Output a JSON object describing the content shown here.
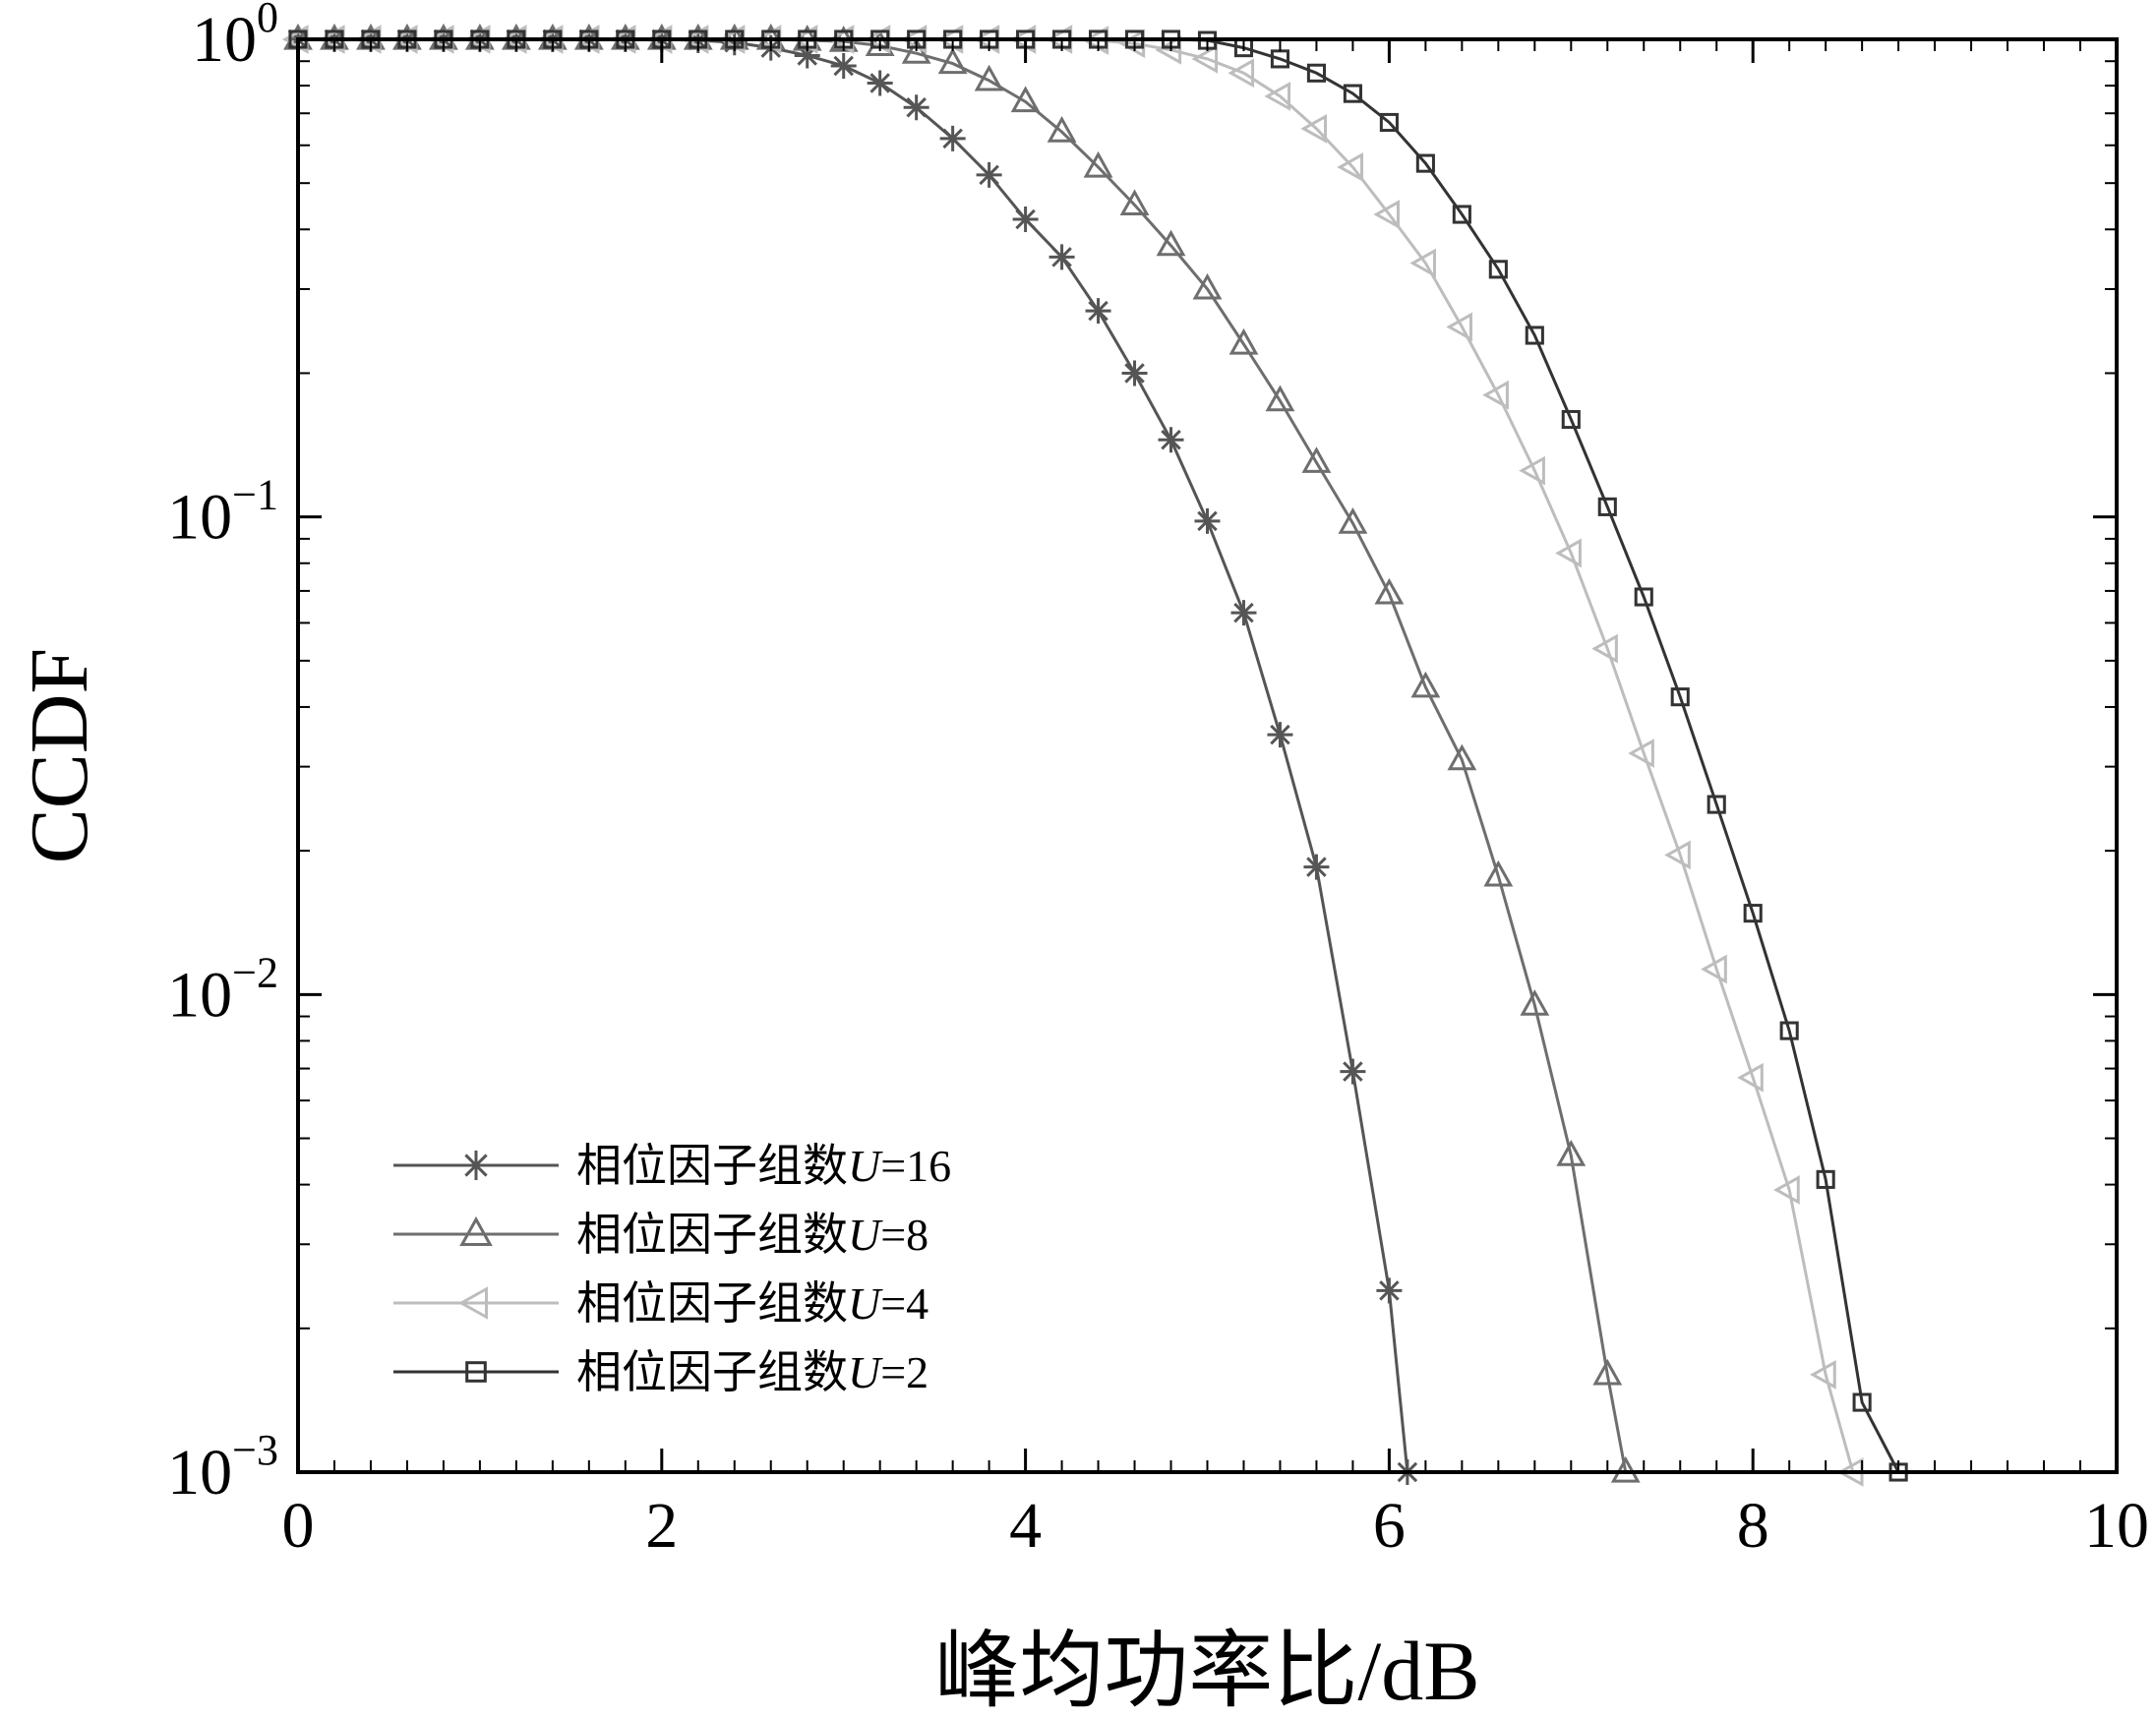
{
  "chart_data": {
    "type": "line",
    "xlabel": "峰均功率比/dB",
    "ylabel": "CCDF",
    "xlim": [
      0,
      10
    ],
    "ylim": [
      0.001,
      1
    ],
    "y_scale": "log",
    "grid": false,
    "legend_position": "bottom-left",
    "x_ticks": [
      {
        "value": 0,
        "label": "0"
      },
      {
        "value": 2,
        "label": "2"
      },
      {
        "value": 4,
        "label": "4"
      },
      {
        "value": 6,
        "label": "6"
      },
      {
        "value": 8,
        "label": "8"
      },
      {
        "value": 10,
        "label": "10"
      }
    ],
    "y_ticks": [
      {
        "value": 1,
        "base": "10",
        "exp": "0"
      },
      {
        "value": 0.1,
        "base": "10",
        "exp": "−1"
      },
      {
        "value": 0.01,
        "base": "10",
        "exp": "−2"
      },
      {
        "value": 0.001,
        "base": "10",
        "exp": "−3"
      }
    ],
    "series": [
      {
        "name": "相位因子组数U=16",
        "legend_prefix": "相位因子组数",
        "legend_var": "U",
        "legend_suffix": "=16",
        "marker": "star",
        "color": "#555555",
        "x": [
          0,
          0.2,
          0.4,
          0.6,
          0.8,
          1.0,
          1.2,
          1.4,
          1.6,
          1.8,
          2.0,
          2.2,
          2.4,
          2.6,
          2.8,
          3.0,
          3.2,
          3.4,
          3.6,
          3.8,
          4.0,
          4.2,
          4.4,
          4.6,
          4.8,
          5.0,
          5.2,
          5.4,
          5.6,
          5.8,
          6.0,
          6.1
        ],
        "y": [
          1,
          1,
          1,
          1,
          1,
          1,
          1,
          1,
          1,
          1,
          1,
          0.995,
          0.985,
          0.96,
          0.925,
          0.88,
          0.81,
          0.72,
          0.62,
          0.52,
          0.42,
          0.35,
          0.27,
          0.2,
          0.145,
          0.098,
          0.063,
          0.035,
          0.0185,
          0.0069,
          0.0024,
          0.001
        ]
      },
      {
        "name": "相位因子组数U=8",
        "legend_prefix": "相位因子组数",
        "legend_var": "U",
        "legend_suffix": "=8",
        "marker": "triangle-up",
        "color": "#6e6e6e",
        "x": [
          0,
          0.2,
          0.4,
          0.6,
          0.8,
          1.0,
          1.2,
          1.4,
          1.6,
          1.8,
          2.0,
          2.2,
          2.4,
          2.6,
          2.8,
          3.0,
          3.2,
          3.4,
          3.6,
          3.8,
          4.0,
          4.2,
          4.4,
          4.6,
          4.8,
          5.0,
          5.2,
          5.4,
          5.6,
          5.8,
          6.0,
          6.2,
          6.4,
          6.6,
          6.8,
          7.0,
          7.2,
          7.3
        ],
        "y": [
          1,
          1,
          1,
          1,
          1,
          1,
          1,
          1,
          1,
          1,
          1,
          1,
          1,
          1,
          0.995,
          0.99,
          0.97,
          0.935,
          0.89,
          0.82,
          0.74,
          0.64,
          0.54,
          0.45,
          0.37,
          0.3,
          0.23,
          0.175,
          0.13,
          0.097,
          0.069,
          0.044,
          0.031,
          0.0177,
          0.0095,
          0.0046,
          0.0016,
          0.001
        ]
      },
      {
        "name": "相位因子组数U=4",
        "legend_prefix": "相位因子组数",
        "legend_var": "U",
        "legend_suffix": "=4",
        "marker": "triangle-left",
        "color": "#bdbdbd",
        "x": [
          0,
          0.2,
          0.4,
          0.6,
          0.8,
          1.0,
          1.2,
          1.4,
          1.6,
          1.8,
          2.0,
          2.2,
          2.4,
          2.6,
          2.8,
          3.0,
          3.2,
          3.4,
          3.6,
          3.8,
          4.0,
          4.2,
          4.4,
          4.6,
          4.8,
          5.0,
          5.2,
          5.4,
          5.6,
          5.8,
          6.0,
          6.2,
          6.4,
          6.6,
          6.8,
          7.0,
          7.2,
          7.4,
          7.6,
          7.8,
          8.0,
          8.2,
          8.4,
          8.55
        ],
        "y": [
          1,
          1,
          1,
          1,
          1,
          1,
          1,
          1,
          1,
          1,
          1,
          1,
          1,
          1,
          1,
          1,
          1,
          1,
          1,
          1,
          1,
          1,
          0.995,
          0.98,
          0.95,
          0.91,
          0.85,
          0.76,
          0.65,
          0.54,
          0.43,
          0.34,
          0.25,
          0.18,
          0.125,
          0.084,
          0.053,
          0.032,
          0.0196,
          0.0113,
          0.0067,
          0.0039,
          0.0016,
          0.001
        ]
      },
      {
        "name": "相位因子组数U=2",
        "legend_prefix": "相位因子组数",
        "legend_var": "U",
        "legend_suffix": "=2",
        "marker": "square",
        "color": "#333333",
        "x": [
          0,
          0.2,
          0.4,
          0.6,
          0.8,
          1.0,
          1.2,
          1.4,
          1.6,
          1.8,
          2.0,
          2.2,
          2.4,
          2.6,
          2.8,
          3.0,
          3.2,
          3.4,
          3.6,
          3.8,
          4.0,
          4.2,
          4.4,
          4.6,
          4.8,
          5.0,
          5.2,
          5.4,
          5.6,
          5.8,
          6.0,
          6.2,
          6.4,
          6.6,
          6.8,
          7.0,
          7.2,
          7.4,
          7.6,
          7.8,
          8.0,
          8.2,
          8.4,
          8.6,
          8.8
        ],
        "y": [
          1,
          1,
          1,
          1,
          1,
          1,
          1,
          1,
          1,
          1,
          1,
          1,
          1,
          1,
          1,
          1,
          1,
          1,
          1,
          1,
          1,
          1,
          1,
          1,
          1,
          0.995,
          0.96,
          0.91,
          0.85,
          0.77,
          0.67,
          0.55,
          0.43,
          0.33,
          0.24,
          0.16,
          0.105,
          0.068,
          0.042,
          0.025,
          0.0148,
          0.0084,
          0.0041,
          0.0014,
          0.001
        ]
      }
    ]
  }
}
